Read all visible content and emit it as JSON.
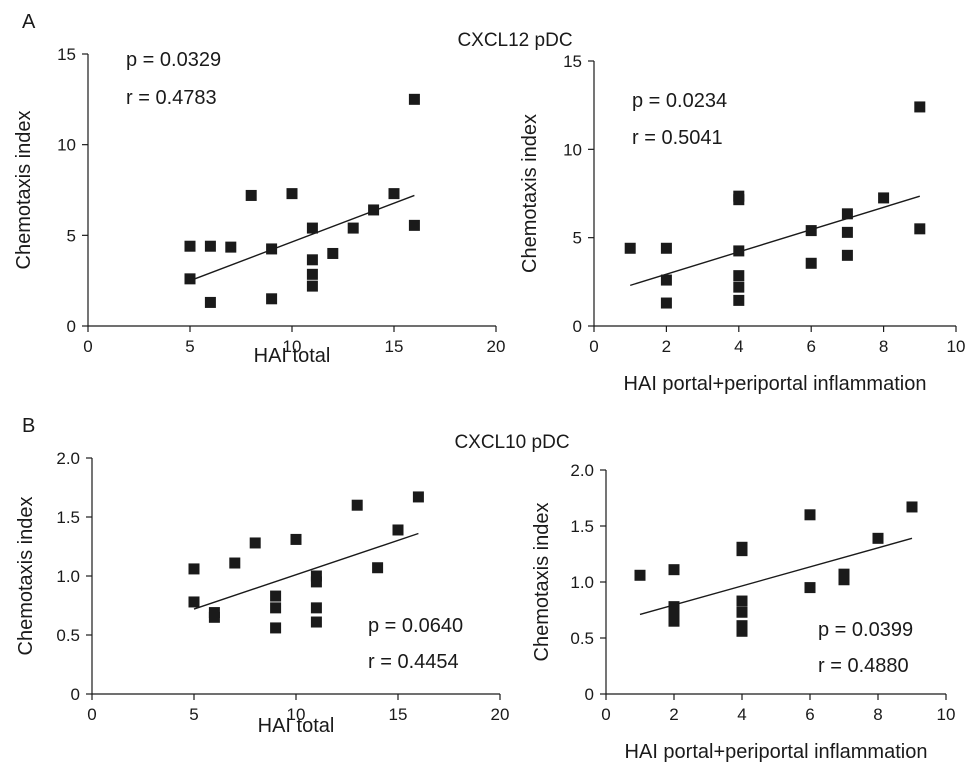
{
  "panel_a": {
    "letter": "A",
    "heading": "CXCL12 pDC",
    "left": {
      "p": "p = 0.0329",
      "r": "r = 0.4783"
    },
    "right": {
      "p": "p = 0.0234",
      "r": "r = 0.5041"
    }
  },
  "panel_b": {
    "letter": "B",
    "heading": "CXCL10 pDC",
    "left": {
      "p": "p = 0.0640",
      "r": "r = 0.4454"
    },
    "right": {
      "p": "p = 0.0399",
      "r": "r = 0.4880"
    }
  },
  "chart_data": [
    {
      "type": "scatter",
      "xlabel": "HAI total",
      "ylabel": "Chemotaxis index",
      "xlim": [
        0,
        20
      ],
      "ylim": [
        0,
        15
      ],
      "xticks": [
        "0",
        "5",
        "10",
        "15",
        "20"
      ],
      "yticks": [
        "0",
        "5",
        "10",
        "15"
      ],
      "points": [
        [
          5,
          4.4
        ],
        [
          5,
          2.6
        ],
        [
          6,
          4.4
        ],
        [
          6,
          1.3
        ],
        [
          7,
          4.35
        ],
        [
          8,
          7.2
        ],
        [
          9,
          4.25
        ],
        [
          9,
          1.5
        ],
        [
          10,
          7.3
        ],
        [
          11,
          5.4
        ],
        [
          11,
          3.65
        ],
        [
          11,
          2.85
        ],
        [
          11,
          2.2
        ],
        [
          12,
          4.0
        ],
        [
          13,
          5.4
        ],
        [
          14,
          6.4
        ],
        [
          15,
          7.3
        ],
        [
          16,
          12.5
        ],
        [
          16,
          5.55
        ]
      ],
      "fit": [
        [
          5,
          2.5
        ],
        [
          16,
          7.2
        ]
      ]
    },
    {
      "type": "scatter",
      "xlabel": "HAI portal+periportal inflammation",
      "ylabel": "Chemotaxis index",
      "xlim": [
        0,
        10
      ],
      "ylim": [
        0,
        15
      ],
      "xticks": [
        "0",
        "2",
        "4",
        "6",
        "8",
        "10"
      ],
      "yticks": [
        "0",
        "5",
        "10",
        "15"
      ],
      "points": [
        [
          1,
          4.4
        ],
        [
          2,
          4.4
        ],
        [
          2,
          2.6
        ],
        [
          2,
          1.3
        ],
        [
          4,
          7.35
        ],
        [
          4,
          7.15
        ],
        [
          4,
          4.25
        ],
        [
          4,
          2.85
        ],
        [
          4,
          2.2
        ],
        [
          4,
          1.45
        ],
        [
          6,
          5.4
        ],
        [
          6,
          3.55
        ],
        [
          7,
          6.35
        ],
        [
          7,
          5.3
        ],
        [
          7,
          4.0
        ],
        [
          8,
          7.25
        ],
        [
          9,
          12.4
        ],
        [
          9,
          5.5
        ]
      ],
      "fit": [
        [
          1,
          2.3
        ],
        [
          9,
          7.35
        ]
      ]
    },
    {
      "type": "scatter",
      "xlabel": "HAI total",
      "ylabel": "Chemotaxis index",
      "xlim": [
        0,
        20
      ],
      "ylim": [
        0,
        2.0
      ],
      "xticks": [
        "0",
        "5",
        "10",
        "15",
        "20"
      ],
      "yticks": [
        "0",
        "0.5",
        "1.0",
        "1.5",
        "2.0"
      ],
      "points": [
        [
          5,
          1.06
        ],
        [
          5,
          0.78
        ],
        [
          6,
          0.69
        ],
        [
          6,
          0.65
        ],
        [
          7,
          1.11
        ],
        [
          8,
          1.28
        ],
        [
          9,
          0.83
        ],
        [
          9,
          0.73
        ],
        [
          9,
          0.56
        ],
        [
          10,
          1.31
        ],
        [
          11,
          1.0
        ],
        [
          11,
          0.95
        ],
        [
          11,
          0.73
        ],
        [
          11,
          0.61
        ],
        [
          13,
          1.6
        ],
        [
          14,
          1.07
        ],
        [
          15,
          1.39
        ],
        [
          16,
          1.67
        ]
      ],
      "fit": [
        [
          5,
          0.72
        ],
        [
          16,
          1.36
        ]
      ]
    },
    {
      "type": "scatter",
      "xlabel": "HAI portal+periportal inflammation",
      "ylabel": "Chemotaxis index",
      "xlim": [
        0,
        10
      ],
      "ylim": [
        0,
        2.0
      ],
      "xticks": [
        "0",
        "2",
        "4",
        "6",
        "8",
        "10"
      ],
      "yticks": [
        "0",
        "0.5",
        "1.0",
        "1.5",
        "2.0"
      ],
      "points": [
        [
          1,
          1.06
        ],
        [
          2,
          1.11
        ],
        [
          2,
          0.78
        ],
        [
          2,
          0.69
        ],
        [
          2,
          0.65
        ],
        [
          4,
          1.31
        ],
        [
          4,
          1.28
        ],
        [
          4,
          0.83
        ],
        [
          4,
          0.73
        ],
        [
          4,
          0.61
        ],
        [
          4,
          0.56
        ],
        [
          6,
          1.6
        ],
        [
          6,
          0.95
        ],
        [
          7,
          1.07
        ],
        [
          7,
          1.02
        ],
        [
          8,
          1.39
        ],
        [
          9,
          1.67
        ]
      ],
      "fit": [
        [
          1,
          0.71
        ],
        [
          9,
          1.39
        ]
      ]
    }
  ]
}
